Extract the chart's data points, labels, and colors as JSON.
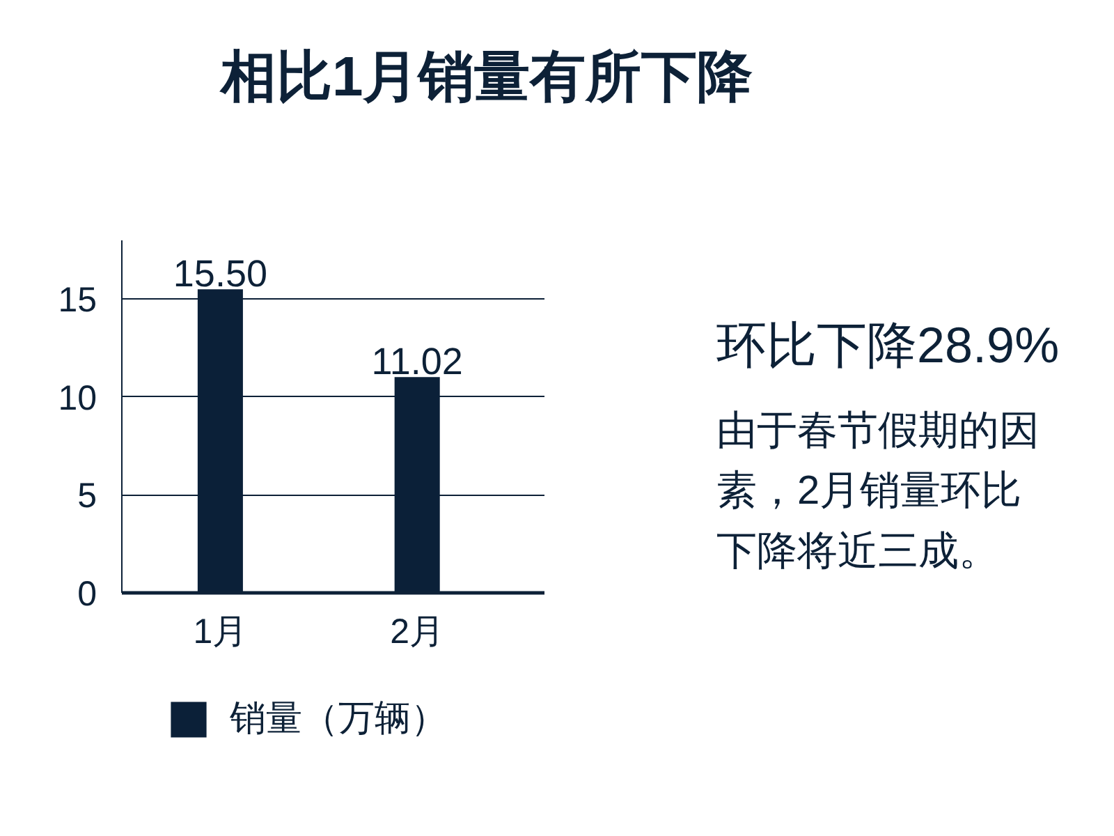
{
  "chart_data": {
    "type": "bar",
    "title": "相比1月销量有所下降",
    "categories": [
      "1月",
      "2月"
    ],
    "series": [
      {
        "name": "销量（万辆）",
        "color": "#0b2038",
        "values": [
          15.5,
          11.02
        ],
        "value_labels": [
          "15.50",
          "11.02"
        ]
      }
    ],
    "ylim": [
      0,
      18
    ],
    "yticks": [
      0,
      5,
      10,
      15
    ],
    "grid": "y",
    "legend": "bottom",
    "annotations": [
      "环比下降28.9%",
      "由于春节假期的因素，2月销量环比下降将近三成。"
    ]
  }
}
